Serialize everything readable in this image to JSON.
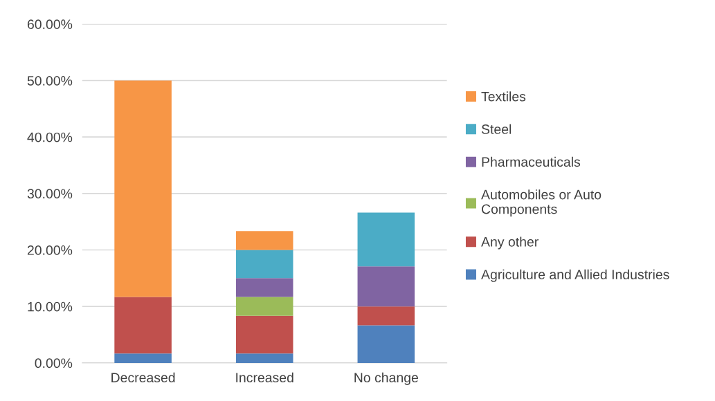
{
  "chart_data": {
    "type": "bar",
    "stacked": true,
    "categories": [
      "Decreased",
      "Increased",
      "No change"
    ],
    "series": [
      {
        "name": "Agriculture and Allied Industries",
        "color": "#4f81bd",
        "values": [
          1.67,
          1.67,
          6.67
        ]
      },
      {
        "name": "Any other",
        "color": "#c0504d",
        "values": [
          10.0,
          6.67,
          3.33
        ]
      },
      {
        "name": "Automobiles or Auto\nComponents",
        "color": "#9bbb59",
        "values": [
          null,
          3.33,
          null
        ]
      },
      {
        "name": "Pharmaceuticals",
        "color": "#8064a2",
        "values": [
          null,
          3.33,
          7.1
        ]
      },
      {
        "name": "Steel",
        "color": "#4bacc6",
        "values": [
          null,
          5.0,
          9.5
        ]
      },
      {
        "name": "Textiles",
        "color": "#f79646",
        "values": [
          38.33,
          3.33,
          null
        ]
      }
    ],
    "ylim": [
      0,
      60
    ],
    "yticks": [
      {
        "value": 0,
        "label": "0.00%"
      },
      {
        "value": 10,
        "label": "10.00%"
      },
      {
        "value": 20,
        "label": "20.00%"
      },
      {
        "value": 30,
        "label": "30.00%"
      },
      {
        "value": 40,
        "label": "40.00%"
      },
      {
        "value": 50,
        "label": "50.00%"
      },
      {
        "value": 60,
        "label": "60.00%"
      }
    ],
    "grid": "y",
    "legend": "right"
  }
}
